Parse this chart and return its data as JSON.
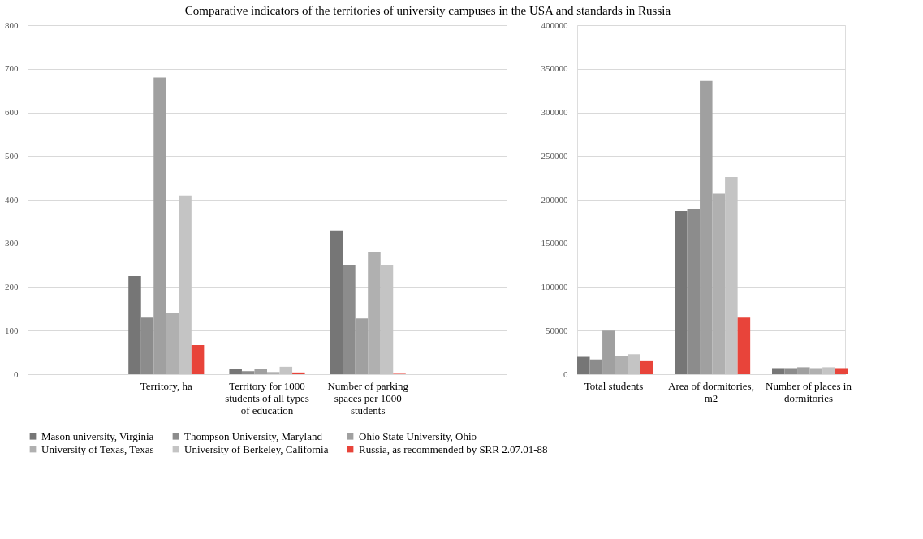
{
  "chart_data": [
    {
      "type": "bar",
      "title": "Comparative indicators of the territories of university campuses in the USA and standards in Russia",
      "categories": [
        null,
        "Territory, ha",
        "Territory for 1000 students of all types of education",
        "Number of parking spaces per 1000 students",
        null
      ],
      "series": [
        {
          "name": "Mason university, Virginia",
          "color": "#767676",
          "values": [
            null,
            225,
            11,
            330,
            null
          ]
        },
        {
          "name": "Thompson University, Maryland",
          "color": "#8c8c8c",
          "values": [
            null,
            130,
            7,
            250,
            null
          ]
        },
        {
          "name": "Ohio State University, Ohio",
          "color": "#a0a0a0",
          "values": [
            null,
            680,
            13,
            128,
            null
          ]
        },
        {
          "name": "University of Texas, Texas",
          "color": "#b0b0b0",
          "values": [
            null,
            140,
            5,
            280,
            null
          ]
        },
        {
          "name": "University of Berkeley, California",
          "color": "#c4c4c4",
          "values": [
            null,
            410,
            17,
            250,
            null
          ]
        },
        {
          "name": "Russia, as recommended by SRR 2.07.01-88",
          "color": "#e8443a",
          "values": [
            null,
            67,
            4,
            1,
            null
          ]
        }
      ],
      "ylim": [
        0,
        800
      ],
      "yticks": [
        0,
        100,
        200,
        300,
        400,
        500,
        600,
        700,
        800
      ],
      "grid": "y",
      "legend": "bottom"
    },
    {
      "type": "bar",
      "categories": [
        "Total students",
        "Area of dormitories, m2",
        "Number of places in dormitories"
      ],
      "series": [
        {
          "color": "#767676",
          "values": [
            20000,
            187000,
            7000
          ]
        },
        {
          "color": "#8c8c8c",
          "values": [
            17000,
            189000,
            7000
          ]
        },
        {
          "color": "#a0a0a0",
          "values": [
            50000,
            336000,
            8000
          ]
        },
        {
          "color": "#b0b0b0",
          "values": [
            21000,
            207000,
            7000
          ]
        },
        {
          "color": "#c4c4c4",
          "values": [
            23000,
            226000,
            8000
          ]
        },
        {
          "color": "#e8443a",
          "values": [
            15000,
            65000,
            7000
          ]
        }
      ],
      "ylim": [
        0,
        400000
      ],
      "yticks": [
        0,
        50000,
        100000,
        150000,
        200000,
        250000,
        300000,
        350000,
        400000
      ],
      "grid": "y"
    }
  ]
}
